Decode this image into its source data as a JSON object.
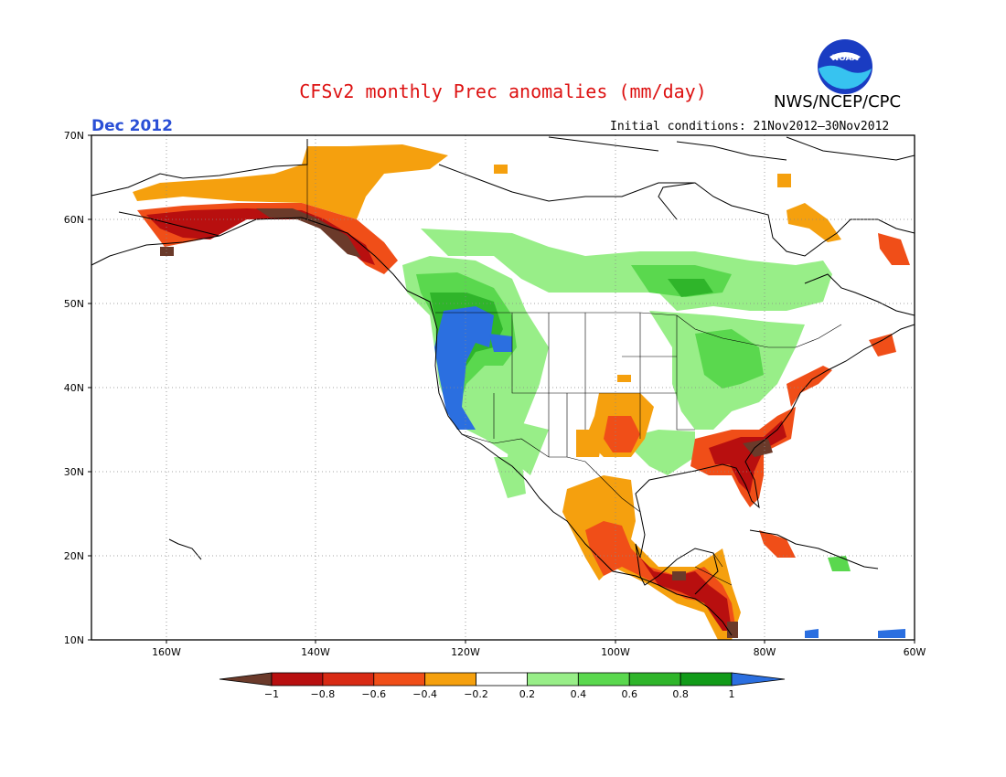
{
  "title": "CFSv2 monthly Prec anomalies (mm/day)",
  "agency": "NWS/NCEP/CPC",
  "month": "Dec 2012",
  "initial_conditions": "Initial conditions: 21Nov2012–30Nov2012",
  "logo_text": "NOAA",
  "map": {
    "lat_labels": [
      "70N",
      "60N",
      "50N",
      "40N",
      "30N",
      "20N",
      "10N"
    ],
    "lon_labels": [
      "160W",
      "140W",
      "120W",
      "100W",
      "80W",
      "60W"
    ]
  },
  "colorbar": {
    "labels": [
      "−1",
      "−0.8",
      "−0.6",
      "−0.4",
      "−0.2",
      "0.2",
      "0.4",
      "0.6",
      "0.8",
      "1"
    ],
    "colors": [
      "#6b3a2a",
      "#b80f0f",
      "#d82a14",
      "#f04e18",
      "#f5a00e",
      "#ffffff",
      "#98ee88",
      "#5ad84e",
      "#2fb52a",
      "#119b19",
      "#2b6fe0"
    ]
  }
}
